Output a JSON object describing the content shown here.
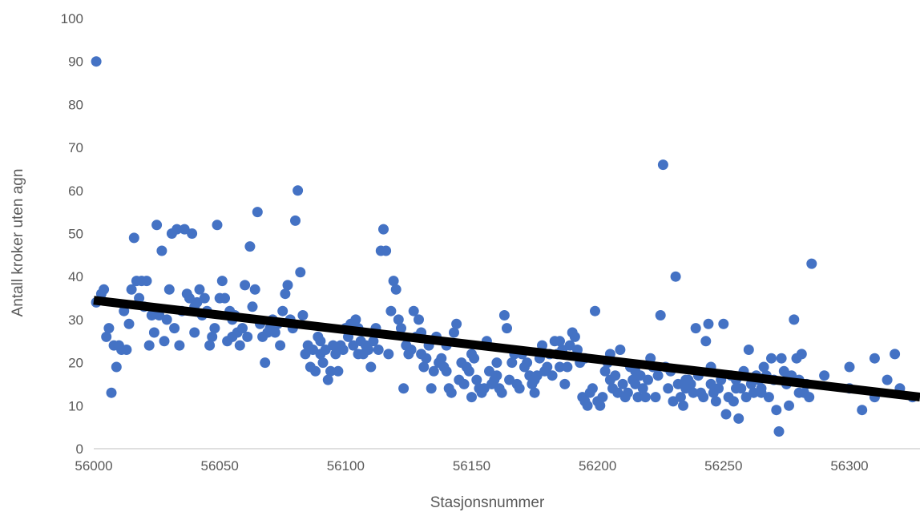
{
  "chart_data": {
    "type": "scatter",
    "title": "",
    "xlabel": "Stasjonsnummer",
    "ylabel": "Antall kroker uten agn",
    "xlim": [
      56000,
      56328
    ],
    "ylim": [
      0,
      100
    ],
    "x_ticks": [
      "56000",
      "56050",
      "56100",
      "56150",
      "56200",
      "56250",
      "56300"
    ],
    "y_ticks": [
      "0",
      "10",
      "20",
      "30",
      "40",
      "50",
      "60",
      "70",
      "80",
      "90",
      "100"
    ],
    "grid": false,
    "legend": "none",
    "point_color": "#4472C4",
    "trendline": {
      "color": "#000000",
      "x": [
        56000,
        56328
      ],
      "y": [
        34.5,
        12
      ]
    },
    "series": [
      {
        "points": [
          [
            56001,
            90
          ],
          [
            56001,
            34
          ],
          [
            56003,
            36
          ],
          [
            56004,
            37
          ],
          [
            56005,
            26
          ],
          [
            56006,
            28
          ],
          [
            56007,
            13
          ],
          [
            56008,
            24
          ],
          [
            56009,
            19
          ],
          [
            56010,
            24
          ],
          [
            56011,
            23
          ],
          [
            56012,
            32
          ],
          [
            56013,
            23
          ],
          [
            56014,
            29
          ],
          [
            56015,
            37
          ],
          [
            56016,
            49
          ],
          [
            56017,
            39
          ],
          [
            56018,
            35
          ],
          [
            56019,
            39
          ],
          [
            56020,
            33
          ],
          [
            56021,
            39
          ],
          [
            56022,
            24
          ],
          [
            56023,
            31
          ],
          [
            56024,
            27
          ],
          [
            56025,
            52
          ],
          [
            56026,
            31
          ],
          [
            56027,
            46
          ],
          [
            56028,
            25
          ],
          [
            56029,
            30
          ],
          [
            56030,
            37
          ],
          [
            56031,
            50
          ],
          [
            56032,
            28
          ],
          [
            56033,
            51
          ],
          [
            56034,
            24
          ],
          [
            56035,
            32
          ],
          [
            56036,
            51
          ],
          [
            56037,
            36
          ],
          [
            56038,
            35
          ],
          [
            56039,
            50
          ],
          [
            56040,
            33
          ],
          [
            56041,
            34
          ],
          [
            56042,
            37
          ],
          [
            56043,
            31
          ],
          [
            56044,
            35
          ],
          [
            56045,
            32
          ],
          [
            56046,
            24
          ],
          [
            56047,
            26
          ],
          [
            56048,
            28
          ],
          [
            56049,
            52
          ],
          [
            56050,
            35
          ],
          [
            56051,
            39
          ],
          [
            56052,
            35
          ],
          [
            56053,
            25
          ],
          [
            56054,
            32
          ],
          [
            56055,
            30
          ],
          [
            56056,
            31
          ],
          [
            56057,
            27
          ],
          [
            56058,
            24
          ],
          [
            56059,
            28
          ],
          [
            56060,
            38
          ],
          [
            56061,
            26
          ],
          [
            56062,
            47
          ],
          [
            56063,
            33
          ],
          [
            56064,
            37
          ],
          [
            56065,
            55
          ],
          [
            56066,
            29
          ],
          [
            56067,
            26
          ],
          [
            56068,
            20
          ],
          [
            56069,
            27
          ],
          [
            56070,
            28
          ],
          [
            56071,
            30
          ],
          [
            56072,
            27
          ],
          [
            56073,
            29
          ],
          [
            56074,
            24
          ],
          [
            56075,
            32
          ],
          [
            56076,
            36
          ],
          [
            56077,
            38
          ],
          [
            56078,
            30
          ],
          [
            56079,
            28
          ],
          [
            56080,
            53
          ],
          [
            56081,
            60
          ],
          [
            56082,
            41
          ],
          [
            56083,
            31
          ],
          [
            56084,
            22
          ],
          [
            56085,
            24
          ],
          [
            56086,
            19
          ],
          [
            56087,
            23
          ],
          [
            56088,
            18
          ],
          [
            56089,
            26
          ],
          [
            56090,
            22
          ],
          [
            56091,
            20
          ],
          [
            56092,
            23
          ],
          [
            56093,
            16
          ],
          [
            56094,
            18
          ],
          [
            56095,
            24
          ],
          [
            56096,
            22
          ],
          [
            56097,
            18
          ],
          [
            56098,
            24
          ],
          [
            56099,
            23
          ],
          [
            56100,
            28
          ],
          [
            56101,
            26
          ],
          [
            56102,
            29
          ],
          [
            56103,
            24
          ],
          [
            56104,
            30
          ],
          [
            56105,
            22
          ],
          [
            56106,
            25
          ],
          [
            56107,
            22
          ],
          [
            56108,
            24
          ],
          [
            56109,
            23
          ],
          [
            56110,
            19
          ],
          [
            56111,
            25
          ],
          [
            56112,
            28
          ],
          [
            56113,
            23
          ],
          [
            56114,
            46
          ],
          [
            56115,
            51
          ],
          [
            56116,
            46
          ],
          [
            56117,
            22
          ],
          [
            56118,
            32
          ],
          [
            56119,
            39
          ],
          [
            56120,
            37
          ],
          [
            56121,
            30
          ],
          [
            56122,
            28
          ],
          [
            56123,
            14
          ],
          [
            56124,
            24
          ],
          [
            56125,
            22
          ],
          [
            56126,
            23
          ],
          [
            56127,
            32
          ],
          [
            56128,
            26
          ],
          [
            56129,
            30
          ],
          [
            56130,
            22
          ],
          [
            56131,
            19
          ],
          [
            56132,
            21
          ],
          [
            56133,
            24
          ],
          [
            56134,
            14
          ],
          [
            56135,
            18
          ],
          [
            56136,
            26
          ],
          [
            56137,
            20
          ],
          [
            56138,
            21
          ],
          [
            56139,
            19
          ],
          [
            56140,
            18
          ],
          [
            56141,
            14
          ],
          [
            56142,
            13
          ],
          [
            56143,
            27
          ],
          [
            56144,
            29
          ],
          [
            56145,
            16
          ],
          [
            56146,
            20
          ],
          [
            56147,
            15
          ],
          [
            56148,
            19
          ],
          [
            56149,
            18
          ],
          [
            56150,
            12
          ],
          [
            56151,
            21
          ],
          [
            56152,
            16
          ],
          [
            56153,
            14
          ],
          [
            56154,
            13
          ],
          [
            56155,
            14
          ],
          [
            56156,
            25
          ],
          [
            56157,
            18
          ],
          [
            56158,
            15
          ],
          [
            56159,
            16
          ],
          [
            56160,
            20
          ],
          [
            56161,
            14
          ],
          [
            56162,
            13
          ],
          [
            56163,
            31
          ],
          [
            56164,
            28
          ],
          [
            56165,
            16
          ],
          [
            56166,
            20
          ],
          [
            56167,
            22
          ],
          [
            56168,
            15
          ],
          [
            56169,
            14
          ],
          [
            56170,
            22
          ],
          [
            56171,
            19
          ],
          [
            56172,
            20
          ],
          [
            56173,
            17
          ],
          [
            56174,
            15
          ],
          [
            56175,
            13
          ],
          [
            56176,
            17
          ],
          [
            56177,
            21
          ],
          [
            56178,
            24
          ],
          [
            56179,
            18
          ],
          [
            56180,
            19
          ],
          [
            56181,
            22
          ],
          [
            56182,
            17
          ],
          [
            56183,
            25
          ],
          [
            56184,
            22
          ],
          [
            56185,
            25
          ],
          [
            56186,
            23
          ],
          [
            56187,
            15
          ],
          [
            56188,
            19
          ],
          [
            56189,
            24
          ],
          [
            56190,
            27
          ],
          [
            56191,
            26
          ],
          [
            56192,
            23
          ],
          [
            56193,
            20
          ],
          [
            56194,
            12
          ],
          [
            56195,
            11
          ],
          [
            56196,
            10
          ],
          [
            56197,
            13
          ],
          [
            56198,
            14
          ],
          [
            56199,
            32
          ],
          [
            56200,
            11
          ],
          [
            56201,
            10
          ],
          [
            56202,
            12
          ],
          [
            56203,
            18
          ],
          [
            56204,
            20
          ],
          [
            56205,
            16
          ],
          [
            56206,
            14
          ],
          [
            56207,
            17
          ],
          [
            56208,
            13
          ],
          [
            56209,
            23
          ],
          [
            56210,
            15
          ],
          [
            56211,
            12
          ],
          [
            56212,
            13
          ],
          [
            56213,
            19
          ],
          [
            56214,
            16
          ],
          [
            56215,
            15
          ],
          [
            56216,
            12
          ],
          [
            56217,
            17
          ],
          [
            56218,
            14
          ],
          [
            56219,
            12
          ],
          [
            56220,
            16
          ],
          [
            56221,
            21
          ],
          [
            56222,
            19
          ],
          [
            56223,
            12
          ],
          [
            56224,
            17
          ],
          [
            56225,
            31
          ],
          [
            56226,
            66
          ],
          [
            56227,
            19
          ],
          [
            56228,
            14
          ],
          [
            56229,
            18
          ],
          [
            56230,
            11
          ],
          [
            56231,
            40
          ],
          [
            56232,
            15
          ],
          [
            56233,
            12
          ],
          [
            56234,
            10
          ],
          [
            56235,
            14
          ],
          [
            56236,
            16
          ],
          [
            56237,
            15
          ],
          [
            56238,
            13
          ],
          [
            56239,
            28
          ],
          [
            56240,
            17
          ],
          [
            56241,
            13
          ],
          [
            56242,
            12
          ],
          [
            56243,
            25
          ],
          [
            56244,
            29
          ],
          [
            56245,
            19
          ],
          [
            56246,
            13
          ],
          [
            56247,
            11
          ],
          [
            56248,
            14
          ],
          [
            56249,
            16
          ],
          [
            56250,
            29
          ],
          [
            56251,
            8
          ],
          [
            56252,
            12
          ],
          [
            56253,
            17
          ],
          [
            56254,
            11
          ],
          [
            56255,
            16
          ],
          [
            56256,
            7
          ],
          [
            56257,
            14
          ],
          [
            56258,
            18
          ],
          [
            56259,
            12
          ],
          [
            56260,
            23
          ],
          [
            56261,
            15
          ],
          [
            56262,
            13
          ],
          [
            56263,
            17
          ],
          [
            56264,
            16
          ],
          [
            56265,
            13
          ],
          [
            56266,
            19
          ],
          [
            56267,
            17
          ],
          [
            56268,
            12
          ],
          [
            56269,
            21
          ],
          [
            56270,
            16
          ],
          [
            56271,
            9
          ],
          [
            56272,
            4
          ],
          [
            56273,
            21
          ],
          [
            56274,
            18
          ],
          [
            56275,
            15
          ],
          [
            56276,
            10
          ],
          [
            56277,
            17
          ],
          [
            56278,
            30
          ],
          [
            56279,
            21
          ],
          [
            56280,
            16
          ],
          [
            56281,
            22
          ],
          [
            56282,
            13
          ],
          [
            56283,
            15
          ],
          [
            56284,
            12
          ],
          [
            56285,
            43
          ],
          [
            56040,
            27
          ],
          [
            56055,
            26
          ],
          [
            56072,
            29
          ],
          [
            56090,
            25
          ],
          [
            56105,
            28
          ],
          [
            56130,
            27
          ],
          [
            56140,
            24
          ],
          [
            56150,
            22
          ],
          [
            56160,
            17
          ],
          [
            56175,
            16
          ],
          [
            56185,
            19
          ],
          [
            56195,
            21
          ],
          [
            56205,
            22
          ],
          [
            56215,
            18
          ],
          [
            56235,
            16
          ],
          [
            56245,
            15
          ],
          [
            56255,
            14
          ],
          [
            56265,
            14
          ],
          [
            56275,
            16
          ],
          [
            56280,
            13
          ],
          [
            56290,
            17
          ],
          [
            56300,
            14
          ],
          [
            56305,
            9
          ],
          [
            56310,
            12
          ],
          [
            56315,
            16
          ],
          [
            56320,
            14
          ],
          [
            56325,
            12
          ],
          [
            56300,
            19
          ],
          [
            56310,
            21
          ],
          [
            56318,
            22
          ]
        ]
      }
    ]
  }
}
